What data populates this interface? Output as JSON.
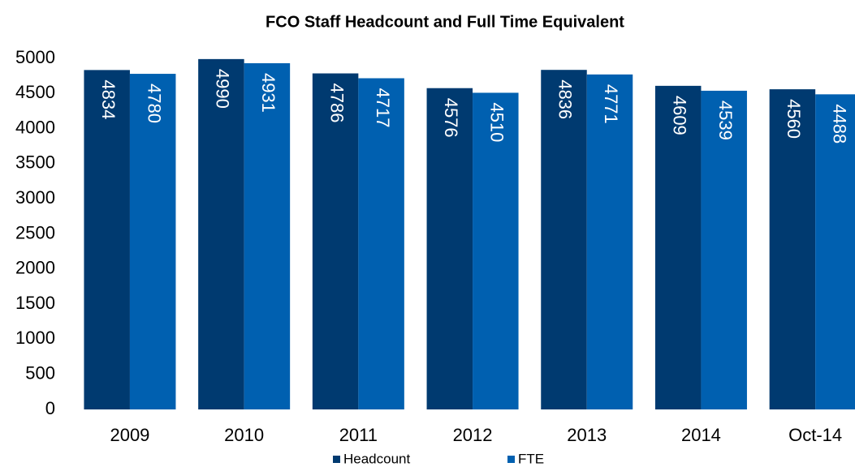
{
  "chart_data": {
    "type": "bar",
    "title": "FCO Staff Headcount and Full Time Equivalent",
    "categories": [
      "2009",
      "2010",
      "2011",
      "2012",
      "2013",
      "2014",
      "Oct-14"
    ],
    "series": [
      {
        "name": "Headcount",
        "color": "#003a70",
        "values": [
          4834,
          4990,
          4786,
          4576,
          4836,
          4609,
          4560
        ]
      },
      {
        "name": "FTE",
        "color": "#0060b0",
        "values": [
          4780,
          4931,
          4717,
          4510,
          4771,
          4539,
          4488
        ]
      }
    ],
    "ylim": [
      0,
      5000
    ],
    "yticks": [
      0,
      500,
      1000,
      1500,
      2000,
      2500,
      3000,
      3500,
      4000,
      4500,
      5000
    ],
    "legend": "bottom"
  }
}
